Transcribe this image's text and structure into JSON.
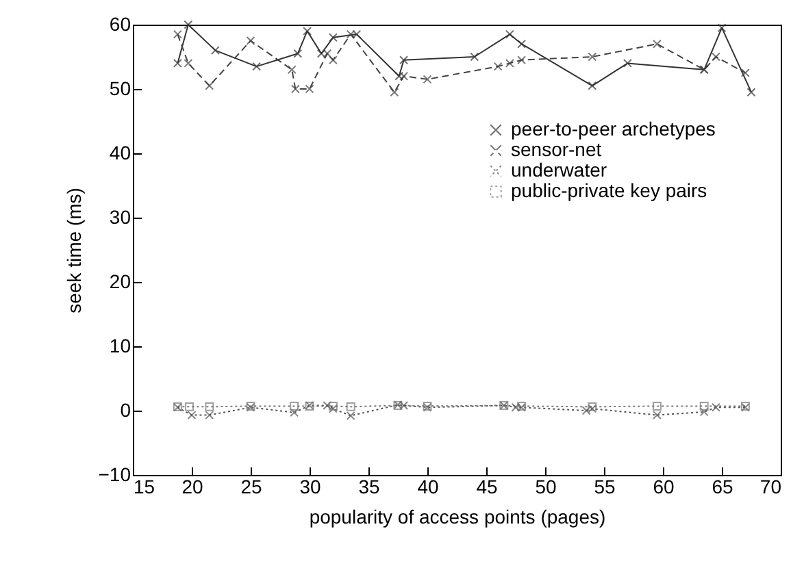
{
  "chart_data": {
    "type": "line",
    "xlabel": "popularity of access points  (pages)",
    "ylabel": "seek time (ms)",
    "xlim": [
      15,
      70
    ],
    "xticks": [
      15,
      20,
      25,
      30,
      35,
      40,
      45,
      50,
      55,
      60,
      65,
      70
    ],
    "ylim": [
      -10,
      60
    ],
    "yticks": [
      -10,
      0,
      10,
      20,
      30,
      40,
      50,
      60
    ],
    "grid": false,
    "legend": "top right",
    "series": [
      {
        "name": "peer-to-peer archetypes",
        "color": "#333333",
        "line_style": "solid",
        "marker": "cross",
        "x": [
          18.8,
          19.7,
          22,
          25.5,
          29,
          29.8,
          31,
          32,
          34,
          37.6,
          38,
          44,
          47,
          48,
          54,
          57,
          63.5,
          65,
          67.5
        ],
        "values": [
          54,
          60,
          56,
          53.5,
          55.5,
          59,
          55.5,
          58,
          58.5,
          52,
          54.5,
          55,
          58.5,
          57,
          50.5,
          54,
          53,
          59.5,
          49.5
        ]
      },
      {
        "name": "sensor-net",
        "color": "#444444",
        "line_style": "dashed",
        "marker": "cross",
        "x": [
          18.8,
          19.7,
          21.5,
          25,
          28.5,
          28.8,
          30,
          31.5,
          32,
          33.5,
          37.2,
          38,
          40,
          46,
          47,
          48,
          54,
          59.5,
          63.5,
          64.5,
          67
        ],
        "values": [
          58.5,
          54,
          50.5,
          57.5,
          53,
          50,
          50,
          55.5,
          54.5,
          58.5,
          49.5,
          52,
          51.5,
          53.5,
          54,
          54.5,
          55,
          57,
          53,
          55,
          52.5
        ]
      },
      {
        "name": "underwater",
        "color": "#555555",
        "line_style": "dotted",
        "marker": "cross",
        "x": [
          18.8,
          20,
          21.5,
          25,
          28.7,
          30,
          31.5,
          32,
          33.5,
          37.5,
          38,
          40,
          46.5,
          47.5,
          48,
          53.5,
          54,
          59.5,
          63.5,
          64.5,
          67
        ],
        "values": [
          0.5,
          -0.7,
          -0.7,
          0.5,
          -0.3,
          0.8,
          0.8,
          0.3,
          -0.8,
          0.9,
          0.8,
          0.5,
          0.8,
          0.5,
          0.5,
          0,
          0.3,
          -0.7,
          -0.2,
          0.5,
          0.5
        ]
      },
      {
        "name": "public-private key pairs",
        "color": "#777777",
        "line_style": "dotted",
        "marker": "square",
        "x": [
          18.8,
          19.8,
          21.5,
          25,
          28.7,
          30,
          32,
          33.5,
          37.5,
          40,
          46.5,
          48,
          54,
          59.5,
          63.5,
          67
        ],
        "values": [
          0.6,
          0.6,
          0.6,
          0.7,
          0.7,
          0.7,
          0.7,
          0.6,
          0.8,
          0.7,
          0.8,
          0.7,
          0.6,
          0.7,
          0.7,
          0.7
        ]
      }
    ]
  }
}
